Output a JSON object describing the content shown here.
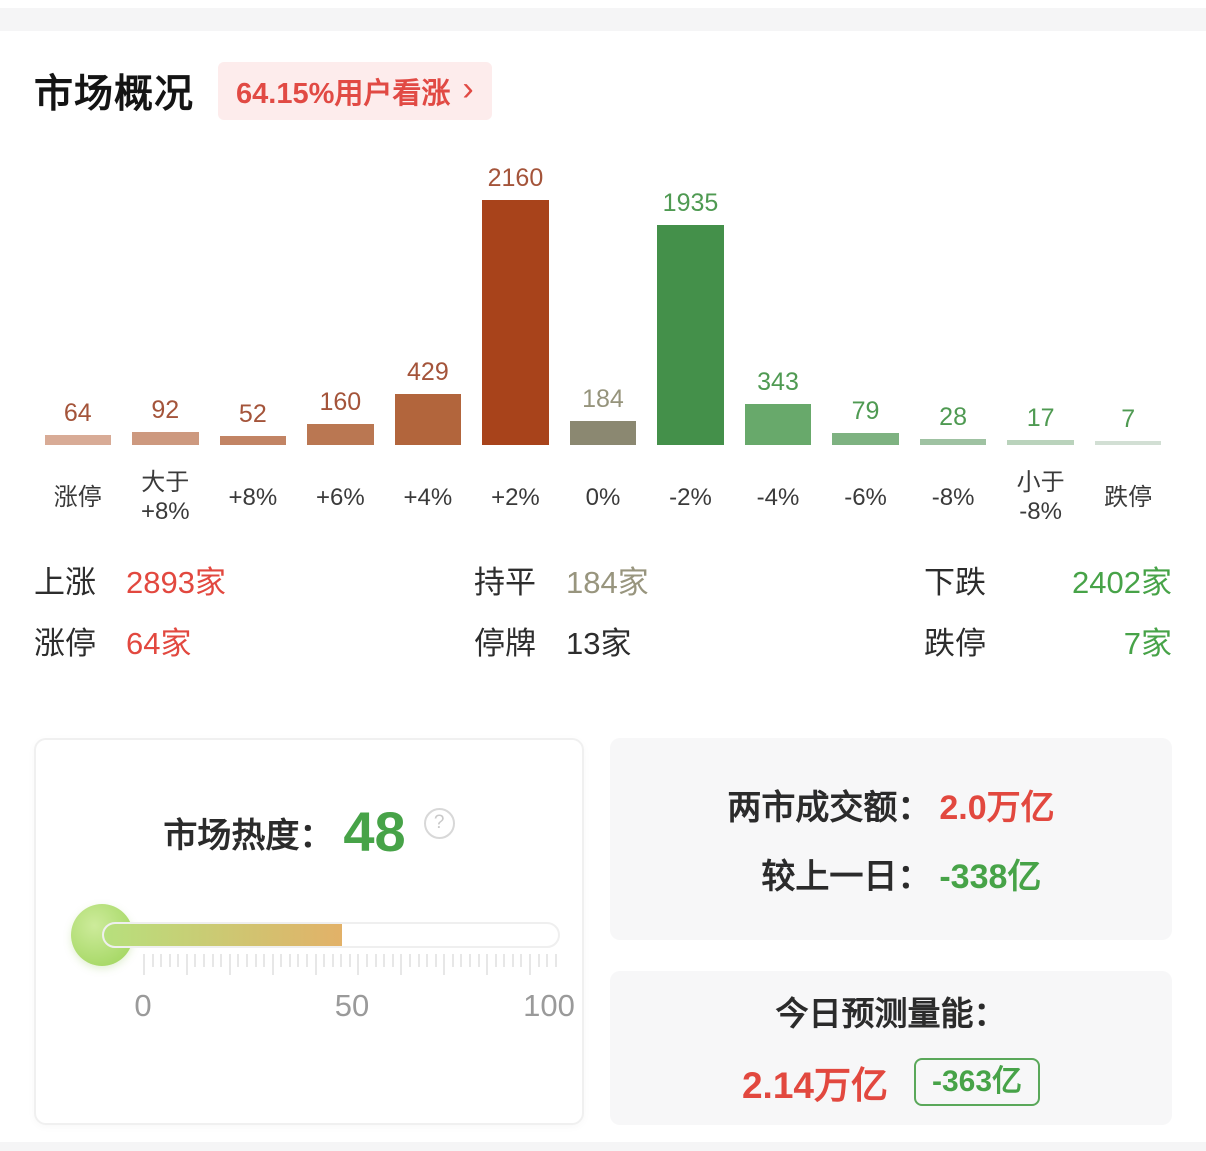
{
  "colors": {
    "red": "#e2483f",
    "green": "#47a348",
    "olive": "#98957e",
    "dark": "#2d2d2d",
    "badge_bg": "#fdecec",
    "badge_text": "#e14a44",
    "panel_bg": "#f7f7f8",
    "gauge_fill_start": "#b7e07d",
    "gauge_fill_end": "#e2b168",
    "gauge_bulb": "#a8d968"
  },
  "header": {
    "title": "市场概况",
    "badge_text": "64.15%用户看涨",
    "badge_arrow": "›"
  },
  "chart_data": {
    "type": "bar",
    "title": "市场概况",
    "categories": [
      "涨停",
      "大于\n+8%",
      "+8%",
      "+6%",
      "+4%",
      "+2%",
      "0%",
      "-2%",
      "-4%",
      "-6%",
      "-8%",
      "小于\n-8%",
      "跌停"
    ],
    "values": [
      64,
      92,
      52,
      160,
      429,
      2160,
      184,
      1935,
      343,
      79,
      28,
      17,
      7
    ],
    "bar_colors": [
      "#d8ab96",
      "#cd997f",
      "#c28464",
      "#ba7752",
      "#b2653c",
      "#a8431b",
      "#8b8871",
      "#44904a",
      "#68a96b",
      "#7eb281",
      "#9fc2a2",
      "#bad3bc",
      "#d2dfd4"
    ],
    "label_colors": [
      "#a4543a",
      "#a4543a",
      "#a4543a",
      "#a4543a",
      "#a4543a",
      "#a4543a",
      "#96947c",
      "#4f9a52",
      "#4f9a52",
      "#4f9a52",
      "#4f9a52",
      "#4f9a52",
      "#4f9a52"
    ],
    "xlabel": "",
    "ylabel": "",
    "ylim": [
      0,
      2160
    ],
    "grid": false,
    "legend": "none"
  },
  "summary": {
    "rows": [
      [
        {
          "label": "上涨",
          "value": "2893家",
          "color": "red"
        },
        {
          "label": "持平",
          "value": "184家",
          "color": "olive"
        },
        {
          "label": "下跌",
          "value": "2402家",
          "color": "green"
        }
      ],
      [
        {
          "label": "涨停",
          "value": "64家",
          "color": "red"
        },
        {
          "label": "停牌",
          "value": "13家",
          "color": "dark"
        },
        {
          "label": "跌停",
          "value": "7家",
          "color": "green"
        }
      ]
    ]
  },
  "heat": {
    "label": "市场热度：",
    "value": "48",
    "percent": 48,
    "help_icon": "?",
    "scale_min": "0",
    "scale_mid": "50",
    "scale_max": "100"
  },
  "turnover": {
    "rows": [
      {
        "label": "两市成交额：",
        "value": "2.0万亿",
        "color": "red"
      },
      {
        "label": "较上一日：",
        "value": "-338亿",
        "color": "green"
      }
    ]
  },
  "forecast": {
    "label": "今日预测量能：",
    "value": "2.14万亿",
    "badge": "-363亿"
  }
}
